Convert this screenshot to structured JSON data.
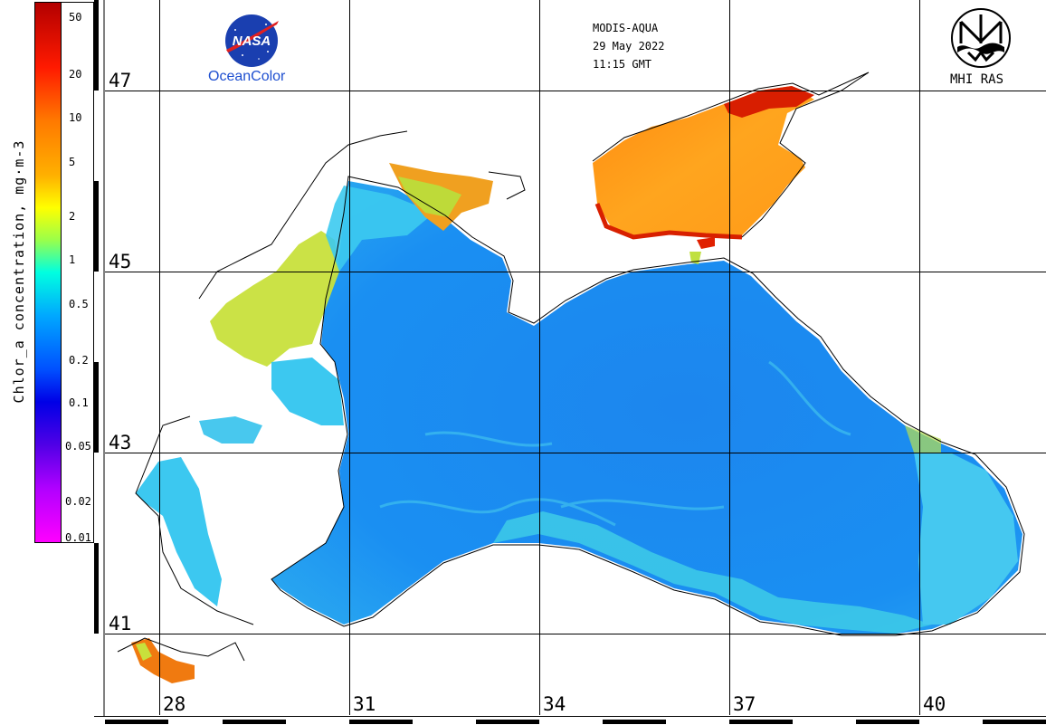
{
  "header": {
    "sensor": "MODIS-AQUA",
    "date": "29 May 2022",
    "time": "11:15 GMT"
  },
  "logos": {
    "nasa_caption": "OceanColor",
    "nasa_text": "NASA",
    "mhi_caption": "MHI RAS"
  },
  "colorbar": {
    "title": "Chlor_a concentration, mg·m-3",
    "ticks": [
      "50",
      "20",
      "10",
      "5",
      "2",
      "1",
      "0.5",
      "0.2",
      "0.1",
      "0.05",
      "0.02",
      "0.01"
    ]
  },
  "grid": {
    "latitudes": [
      "47",
      "45",
      "43",
      "41"
    ],
    "longitudes": [
      "28",
      "31",
      "34",
      "37",
      "40"
    ]
  },
  "colors": {
    "open_sea": "#1e8cf0",
    "coastal_cyan": "#3cc8f0",
    "shelf_green": "#c8e03c",
    "azov_orange": "#ff9a1e",
    "azov_red": "#d81e00",
    "land": "#ffffff",
    "grid": "#000000"
  },
  "icons": [
    "nasa-logo",
    "mhi-ras-logo"
  ]
}
